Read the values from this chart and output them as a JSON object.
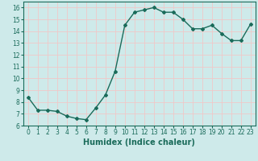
{
  "x": [
    0,
    1,
    2,
    3,
    4,
    5,
    6,
    7,
    8,
    9,
    10,
    11,
    12,
    13,
    14,
    15,
    16,
    17,
    18,
    19,
    20,
    21,
    22,
    23
  ],
  "y": [
    8.4,
    7.3,
    7.3,
    7.2,
    6.8,
    6.6,
    6.5,
    7.5,
    8.6,
    10.6,
    14.5,
    15.6,
    15.8,
    16.0,
    15.6,
    15.6,
    15.0,
    14.2,
    14.2,
    14.5,
    13.8,
    13.2,
    13.2,
    14.6
  ],
  "line_color": "#1a6b5a",
  "marker": "D",
  "marker_size": 2.0,
  "bg_color": "#ceeaea",
  "grid_color": "#f0c8c8",
  "xlabel": "Humidex (Indice chaleur)",
  "ylabel": "",
  "xlim": [
    -0.5,
    23.5
  ],
  "ylim": [
    6,
    16.5
  ],
  "yticks": [
    6,
    7,
    8,
    9,
    10,
    11,
    12,
    13,
    14,
    15,
    16
  ],
  "xticks": [
    0,
    1,
    2,
    3,
    4,
    5,
    6,
    7,
    8,
    9,
    10,
    11,
    12,
    13,
    14,
    15,
    16,
    17,
    18,
    19,
    20,
    21,
    22,
    23
  ],
  "tick_label_fontsize": 5.5,
  "xlabel_fontsize": 7.0,
  "line_width": 1.0
}
